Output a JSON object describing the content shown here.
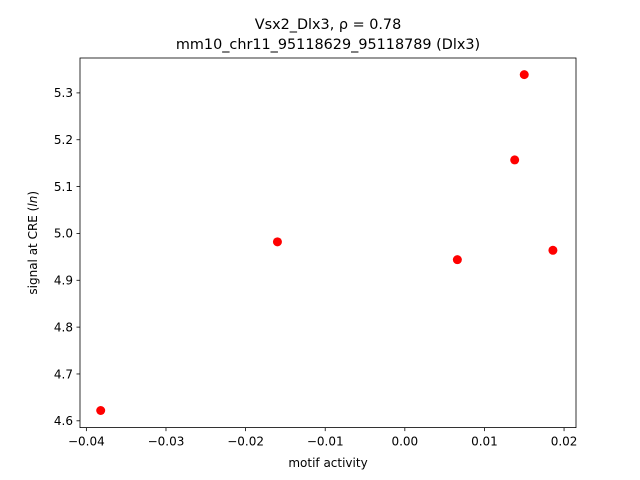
{
  "chart_data": {
    "type": "scatter",
    "title_line1": "Vsx2_Dlx3, ρ = 0.78",
    "title_line2": "mm10_chr11_95118629_95118789 (Dlx3)",
    "xlabel": "motif activity",
    "ylabel": "signal at CRE (ln)",
    "xlim": [
      -0.0408,
      0.0215
    ],
    "ylim": [
      4.5855,
      5.3745
    ],
    "xticks": [
      {
        "value": -0.04,
        "label": "−0.04"
      },
      {
        "value": -0.03,
        "label": "−0.03"
      },
      {
        "value": -0.02,
        "label": "−0.02"
      },
      {
        "value": -0.01,
        "label": "−0.01"
      },
      {
        "value": 0.0,
        "label": "0.00"
      },
      {
        "value": 0.01,
        "label": "0.01"
      },
      {
        "value": 0.02,
        "label": "0.02"
      }
    ],
    "yticks": [
      {
        "value": 4.6,
        "label": "4.6"
      },
      {
        "value": 4.7,
        "label": "4.7"
      },
      {
        "value": 4.8,
        "label": "4.8"
      },
      {
        "value": 4.9,
        "label": "4.9"
      },
      {
        "value": 5.0,
        "label": "5.0"
      },
      {
        "value": 5.1,
        "label": "5.1"
      },
      {
        "value": 5.2,
        "label": "5.2"
      },
      {
        "value": 5.3,
        "label": "5.3"
      }
    ],
    "grid": false,
    "point_color": "#ff0000",
    "points": [
      {
        "x": -0.0382,
        "y": 4.622
      },
      {
        "x": -0.016,
        "y": 4.982
      },
      {
        "x": 0.0066,
        "y": 4.944
      },
      {
        "x": 0.0138,
        "y": 5.157
      },
      {
        "x": 0.015,
        "y": 5.339
      },
      {
        "x": 0.0186,
        "y": 4.964
      }
    ]
  }
}
